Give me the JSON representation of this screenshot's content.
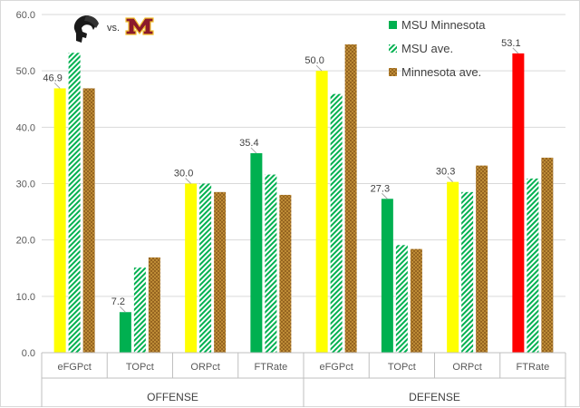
{
  "chart_data": {
    "type": "bar",
    "title": "",
    "header_vs": "vs.",
    "groups": [
      "OFFENSE",
      "DEFENSE"
    ],
    "categories": [
      "eFGPct",
      "TOPct",
      "ORPct",
      "FTRate",
      "eFGPct",
      "TOPct",
      "ORPct",
      "FTRate"
    ],
    "ylim": [
      0,
      60
    ],
    "yticks": [
      "0.0",
      "10.0",
      "20.0",
      "30.0",
      "40.0",
      "50.0",
      "60.0"
    ],
    "grid": true,
    "legend_position": "top-right",
    "series": [
      {
        "name": "MSU Minnesota",
        "values": [
          46.9,
          7.2,
          30.0,
          35.4,
          50.0,
          27.3,
          30.3,
          53.1
        ],
        "labels": [
          "46.9",
          "7.2",
          "30.0",
          "35.4",
          "50.0",
          "27.3",
          "30.3",
          "53.1"
        ],
        "point_colors": [
          "#ffff00",
          "#00b050",
          "#ffff00",
          "#00b050",
          "#ffff00",
          "#00b050",
          "#ffff00",
          "#ff0000"
        ],
        "color": "#00b050"
      },
      {
        "name": "MSU ave.",
        "values": [
          53.2,
          15.1,
          30.0,
          31.6,
          45.9,
          19.1,
          28.5,
          30.9
        ],
        "color": "#00b050",
        "pattern": "hatch"
      },
      {
        "name": "Minnesota ave.",
        "values": [
          46.9,
          16.9,
          28.5,
          28.0,
          54.7,
          18.4,
          33.2,
          34.6
        ],
        "color": "#b8860b",
        "pattern": "crosshatch"
      }
    ]
  }
}
